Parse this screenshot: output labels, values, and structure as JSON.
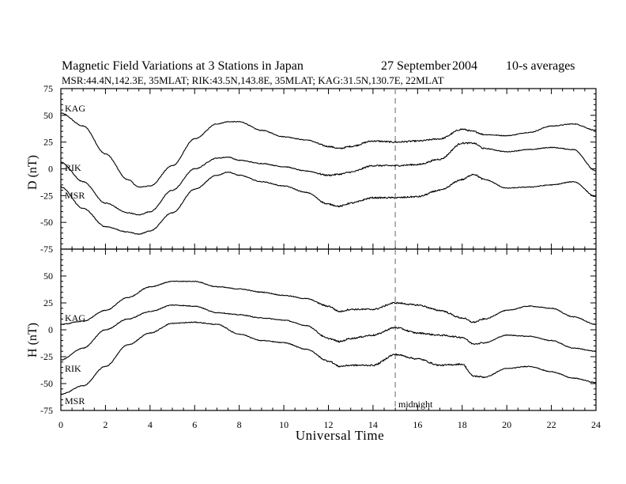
{
  "title_left": "Magnetic Field Variations at 3 Stations in Japan",
  "title_date": "27 September",
  "title_year": "2004",
  "title_avg": "10-s averages",
  "subtitle": "MSR:44.4N,142.3E, 35MLAT;   RIK:43.5N,143.8E, 35MLAT;   KAG:31.5N,130.7E, 22MLAT",
  "chart_data": [
    {
      "type": "line",
      "panel": "D",
      "ylabel": "D (nT)",
      "xlabel": "Universal Time",
      "xlim": [
        0,
        24
      ],
      "ylim": [
        -75,
        75
      ],
      "yticks": [
        75,
        50,
        25,
        0,
        -25,
        -50,
        -75
      ],
      "xticks": [
        0,
        2,
        4,
        6,
        8,
        10,
        12,
        14,
        16,
        18,
        20,
        22,
        24
      ],
      "x": [
        0,
        1,
        2,
        3,
        3.5,
        4,
        5,
        6,
        7,
        7.5,
        8,
        9,
        10,
        11,
        12,
        12.5,
        13,
        14,
        15,
        16,
        17,
        18,
        18.5,
        19,
        20,
        21,
        22,
        23,
        24
      ],
      "series": [
        {
          "name": "KAG",
          "values": [
            52,
            40,
            14,
            -10,
            -17,
            -16,
            3,
            28,
            42,
            44,
            44,
            36,
            30,
            27,
            21,
            19,
            21,
            26,
            25,
            26,
            28,
            37,
            35,
            32,
            31,
            34,
            40,
            42,
            36
          ]
        },
        {
          "name": "RIK",
          "values": [
            6,
            -12,
            -32,
            -41,
            -43,
            -40,
            -20,
            0,
            10,
            11,
            8,
            5,
            2,
            -2,
            -6,
            -5,
            -3,
            3,
            3,
            4,
            9,
            24,
            24,
            19,
            16,
            18,
            20,
            18,
            -2
          ]
        },
        {
          "name": "MSR",
          "values": [
            -17,
            -37,
            -54,
            -59,
            -61,
            -58,
            -41,
            -19,
            -6,
            -3,
            -6,
            -12,
            -16,
            -22,
            -33,
            -35,
            -32,
            -27,
            -27,
            -26,
            -20,
            -10,
            -5,
            -10,
            -18,
            -17,
            -15,
            -12,
            -26
          ]
        }
      ],
      "annotation": "midnight",
      "annotation_x": 15
    },
    {
      "type": "line",
      "panel": "H",
      "ylabel": "H (nT)",
      "xlabel": "Universal Time",
      "xlim": [
        0,
        24
      ],
      "ylim": [
        -75,
        75
      ],
      "yticks": [
        50,
        25,
        0,
        -25,
        -50,
        -75
      ],
      "xticks": [
        0,
        2,
        4,
        6,
        8,
        10,
        12,
        14,
        16,
        18,
        20,
        22,
        24
      ],
      "x": [
        0,
        1,
        2,
        3,
        4,
        5,
        6,
        7,
        8,
        9,
        10,
        11,
        12,
        12.5,
        13,
        14,
        15,
        16,
        17,
        18,
        18.5,
        19,
        20,
        21,
        22,
        23,
        24
      ],
      "series": [
        {
          "name": "KAG",
          "values": [
            5,
            8,
            18,
            30,
            40,
            45,
            45,
            40,
            38,
            35,
            32,
            29,
            22,
            17,
            19,
            19,
            25,
            23,
            18,
            11,
            7,
            10,
            18,
            22,
            20,
            12,
            5
          ]
        },
        {
          "name": "RIK",
          "values": [
            -28,
            -17,
            0,
            10,
            17,
            23,
            22,
            16,
            14,
            11,
            9,
            4,
            -8,
            -11,
            -8,
            -5,
            2,
            -3,
            -5,
            -7,
            -13,
            -12,
            -5,
            -6,
            -10,
            -17,
            -20
          ]
        },
        {
          "name": "MSR",
          "values": [
            -60,
            -52,
            -34,
            -14,
            -3,
            6,
            7,
            5,
            -4,
            -10,
            -12,
            -18,
            -29,
            -34,
            -33,
            -33,
            -23,
            -27,
            -33,
            -32,
            -43,
            -44,
            -36,
            -34,
            -39,
            -45,
            -49
          ]
        }
      ],
      "annotation": "midnight",
      "annotation_x": 15
    }
  ]
}
